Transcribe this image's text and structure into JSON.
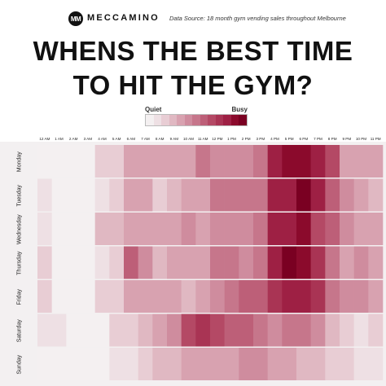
{
  "brand": {
    "logo_mark": "MM",
    "name": "MECCAMINO"
  },
  "source_note": "Data Source: 18 month gym vending sales throughout Melbourne",
  "title": {
    "line1": "WHENS THE BEST TIME",
    "line2": "TO HIT THE GYM?"
  },
  "legend": {
    "low_label": "Quiet",
    "high_label": "Busy",
    "colors": [
      "#f4f0f1",
      "#eee0e4",
      "#e8cdd4",
      "#e0b8c2",
      "#d8a2b0",
      "#cf8c9e",
      "#c6768b",
      "#bd5f78",
      "#b44965",
      "#a93454",
      "#9e2044",
      "#8b0a2c",
      "#7a0022"
    ]
  },
  "chart_data": {
    "type": "heatmap",
    "title": "WHENS THE BEST TIME TO HIT THE GYM?",
    "scale": {
      "min": 0,
      "max": 12,
      "low_label": "Quiet",
      "high_label": "Busy"
    },
    "x": [
      "12 AM",
      "1 AM",
      "2 AM",
      "3 AM",
      "4 AM",
      "5 AM",
      "6 AM",
      "7 AM",
      "8 AM",
      "9 AM",
      "10 AM",
      "11 AM",
      "12 PM",
      "1 PM",
      "2 PM",
      "3 PM",
      "4 PM",
      "5 PM",
      "6 PM",
      "7 PM",
      "8 PM",
      "9 PM",
      "10 PM",
      "11 PM"
    ],
    "y": [
      "Monday",
      "Tuesday",
      "Wednesday",
      "Thursday",
      "Friday",
      "Saturday",
      "Sunday"
    ],
    "values": [
      [
        0,
        0,
        0,
        0,
        2,
        2,
        4,
        4,
        4,
        4,
        4,
        6,
        5,
        5,
        5,
        6,
        10,
        11,
        11,
        10,
        8,
        4,
        4,
        4
      ],
      [
        1,
        0,
        0,
        0,
        1,
        2,
        4,
        4,
        2,
        3,
        4,
        4,
        6,
        6,
        6,
        6,
        10,
        10,
        12,
        10,
        7,
        5,
        4,
        3
      ],
      [
        1,
        0,
        0,
        0,
        3,
        3,
        4,
        4,
        4,
        4,
        5,
        4,
        5,
        5,
        5,
        6,
        10,
        10,
        11,
        8,
        7,
        5,
        4,
        4
      ],
      [
        2,
        0,
        0,
        0,
        1,
        2,
        7,
        5,
        3,
        4,
        4,
        4,
        6,
        6,
        5,
        6,
        10,
        12,
        11,
        9,
        6,
        4,
        5,
        4
      ],
      [
        2,
        0,
        0,
        0,
        2,
        2,
        4,
        4,
        4,
        4,
        3,
        4,
        5,
        6,
        7,
        7,
        9,
        10,
        10,
        9,
        6,
        5,
        5,
        4
      ],
      [
        1,
        1,
        0,
        0,
        0,
        2,
        2,
        3,
        4,
        5,
        8,
        9,
        8,
        7,
        7,
        6,
        5,
        6,
        6,
        5,
        3,
        2,
        1,
        2
      ],
      [
        0,
        0,
        0,
        0,
        0,
        1,
        1,
        2,
        3,
        3,
        4,
        4,
        4,
        4,
        5,
        5,
        4,
        4,
        3,
        3,
        2,
        2,
        1,
        1
      ]
    ]
  }
}
